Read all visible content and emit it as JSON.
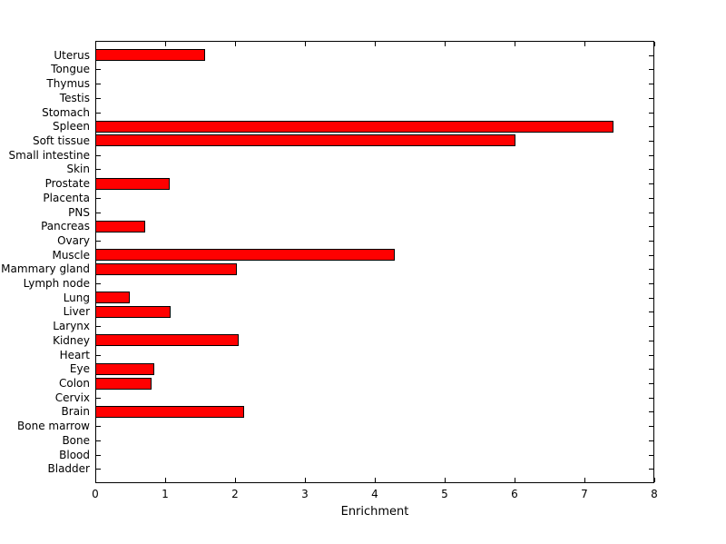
{
  "chart_data": {
    "type": "bar",
    "orientation": "horizontal",
    "title": "",
    "xlabel": "Enrichment",
    "ylabel": "",
    "xlim": [
      0,
      8
    ],
    "xticks": [
      0,
      1,
      2,
      3,
      4,
      5,
      6,
      7,
      8
    ],
    "grid": false,
    "legend": "none",
    "bar_color": "#ff0000",
    "bar_edge_color": "#000000",
    "axis_color": "#000000",
    "background_color": "#ffffff",
    "categories_top_to_bottom": [
      "Uterus",
      "Tongue",
      "Thymus",
      "Testis",
      "Stomach",
      "Spleen",
      "Soft tissue",
      "Small intestine",
      "Skin",
      "Prostate",
      "Placenta",
      "PNS",
      "Pancreas",
      "Ovary",
      "Muscle",
      "Mammary gland",
      "Lymph node",
      "Lung",
      "Liver",
      "Larynx",
      "Kidney",
      "Heart",
      "Eye",
      "Colon",
      "Cervix",
      "Brain",
      "Bone marrow",
      "Bone",
      "Blood",
      "Bladder"
    ],
    "values": [
      1.57,
      0,
      0,
      0,
      0,
      7.42,
      6.01,
      0,
      0,
      1.06,
      0,
      0,
      0.71,
      0,
      4.28,
      2.03,
      0,
      0.49,
      1.08,
      0,
      2.05,
      0,
      0.85,
      0.8,
      0,
      2.13,
      0,
      0,
      0,
      0
    ]
  }
}
